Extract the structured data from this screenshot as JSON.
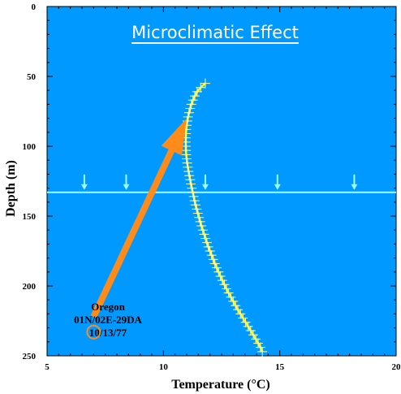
{
  "chart_data": {
    "type": "scatter",
    "title": "Microclimatic Effect",
    "xlabel": "Temperature (°C)",
    "ylabel": "Depth (m)",
    "xlim": [
      5,
      20
    ],
    "ylim": [
      0,
      250
    ],
    "y_inverted": true,
    "x_ticks": [
      5,
      10,
      15,
      20
    ],
    "y_ticks": [
      0,
      50,
      100,
      150,
      200,
      250
    ],
    "grid": false,
    "legend": "none",
    "colors": {
      "plot_background": "#0099ff",
      "series": "#ffff00",
      "markers": "#ffff99",
      "water_table": "#99ffff",
      "arrow": "#ff8c1a",
      "title": "#ffffff"
    },
    "series": [
      {
        "points": [
          [
            11.8,
            55
          ],
          [
            11.6,
            58
          ],
          [
            11.45,
            61
          ],
          [
            11.35,
            64
          ],
          [
            11.27,
            67
          ],
          [
            11.2,
            70
          ],
          [
            11.15,
            73
          ],
          [
            11.1,
            76
          ],
          [
            11.06,
            79
          ],
          [
            11.03,
            82
          ],
          [
            11.0,
            85
          ],
          [
            10.98,
            88
          ],
          [
            10.97,
            91
          ],
          [
            10.96,
            94
          ],
          [
            10.96,
            97
          ],
          [
            10.96,
            100
          ],
          [
            10.97,
            103
          ],
          [
            10.98,
            106
          ],
          [
            11.0,
            109
          ],
          [
            11.02,
            112
          ],
          [
            11.05,
            115
          ],
          [
            11.08,
            118
          ],
          [
            11.11,
            121
          ],
          [
            11.15,
            124
          ],
          [
            11.18,
            127
          ],
          [
            11.22,
            130
          ],
          [
            11.26,
            133
          ],
          [
            11.3,
            136
          ],
          [
            11.34,
            139
          ],
          [
            11.38,
            142
          ],
          [
            11.43,
            145
          ],
          [
            11.48,
            148
          ],
          [
            11.53,
            151
          ],
          [
            11.58,
            154
          ],
          [
            11.63,
            157
          ],
          [
            11.69,
            160
          ],
          [
            11.75,
            163
          ],
          [
            11.81,
            166
          ],
          [
            11.87,
            169
          ],
          [
            11.93,
            172
          ],
          [
            12.0,
            175
          ],
          [
            12.07,
            178
          ],
          [
            12.14,
            181
          ],
          [
            12.21,
            184
          ],
          [
            12.29,
            187
          ],
          [
            12.37,
            190
          ],
          [
            12.45,
            193
          ],
          [
            12.53,
            196
          ],
          [
            12.62,
            199
          ],
          [
            12.71,
            202
          ],
          [
            12.8,
            205
          ],
          [
            12.9,
            208
          ],
          [
            13.0,
            211
          ],
          [
            13.1,
            214
          ],
          [
            13.2,
            217
          ],
          [
            13.31,
            220
          ],
          [
            13.42,
            223
          ],
          [
            13.53,
            226
          ],
          [
            13.64,
            229
          ],
          [
            13.75,
            232
          ],
          [
            13.86,
            235
          ],
          [
            13.97,
            238
          ],
          [
            14.07,
            241
          ],
          [
            14.17,
            244
          ],
          [
            14.25,
            247
          ]
        ]
      }
    ],
    "water_table": {
      "depth": 133,
      "arrow_x": [
        6.6,
        8.4,
        11.8,
        14.9,
        18.2
      ]
    },
    "arrow": {
      "from": [
        7.0,
        222
      ],
      "to": [
        11.0,
        80
      ]
    },
    "annotation": {
      "lines": [
        "Oregon",
        "01N/02E-29DA",
        "10/13/77"
      ],
      "circle_at": [
        7.0,
        233
      ]
    }
  }
}
